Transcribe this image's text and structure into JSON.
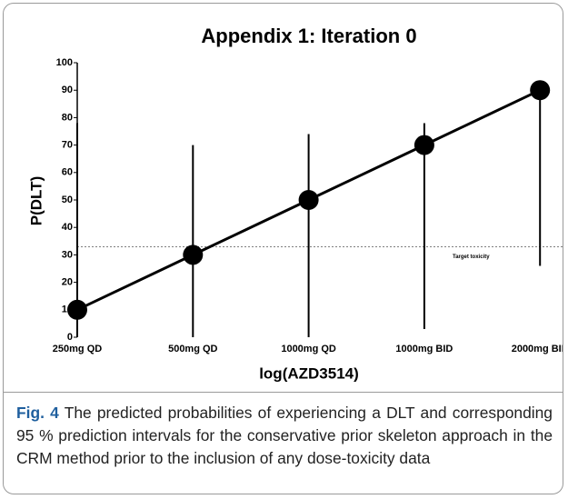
{
  "chart_data": {
    "type": "line",
    "title": "Appendix 1: Iteration 0",
    "x_label": "log(AZD3514)",
    "y_label": "P(DLT)",
    "categories": [
      "250mg QD",
      "500mg QD",
      "1000mg QD",
      "1000mg BID",
      "2000mg BID"
    ],
    "series": [
      {
        "color": "#000000",
        "values": [
          10,
          30,
          50,
          70,
          90
        ],
        "lower": [
          0,
          0,
          0,
          3,
          26
        ],
        "upper": [
          78,
          70,
          74,
          78,
          91
        ]
      }
    ],
    "ylim": [
      0,
      100
    ],
    "yticks": [
      0,
      10,
      20,
      30,
      40,
      50,
      60,
      70,
      80,
      90,
      100
    ],
    "reference_line": {
      "value": 33,
      "label": "Target toxicity"
    }
  },
  "caption": {
    "label": "Fig. 4",
    "text": "The predicted probabilities of experiencing a DLT and corresponding 95 % prediction intervals for the conservative prior skeleton approach in the CRM method prior to the inclusion of any dose-toxicity data"
  }
}
